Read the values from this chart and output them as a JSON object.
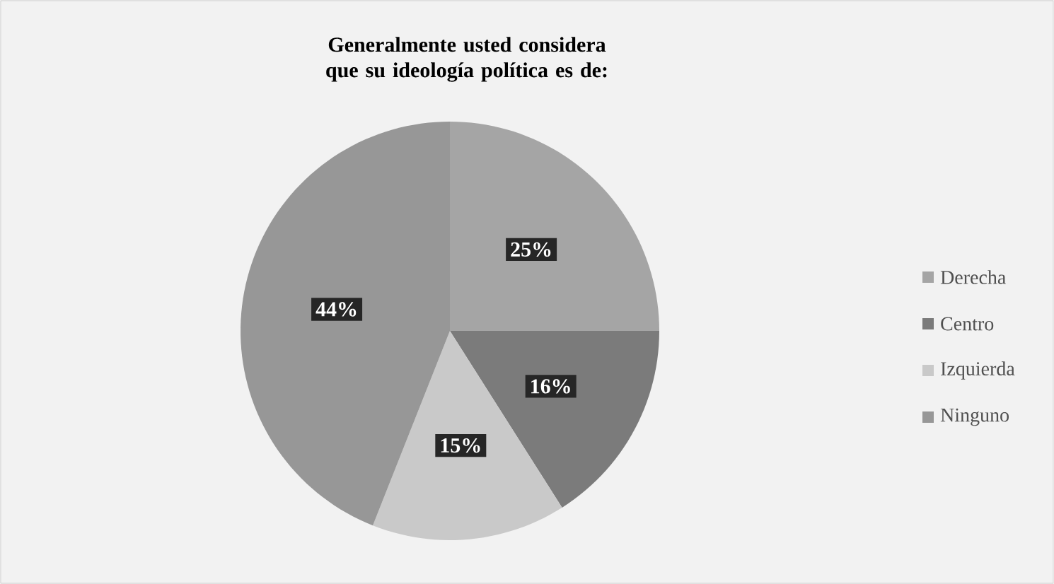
{
  "chart_data": {
    "type": "pie",
    "title": "Generalmente usted considera que su ideología política es de:",
    "categories": [
      "Derecha",
      "Centro",
      "Izquierda",
      "Ninguno"
    ],
    "values": [
      25,
      16,
      15,
      44
    ],
    "value_labels": [
      "25%",
      "16%",
      "15%",
      "44%"
    ],
    "colors": [
      "#a5a5a5",
      "#7b7b7b",
      "#c9c9c9",
      "#979797"
    ],
    "legend": "right"
  }
}
